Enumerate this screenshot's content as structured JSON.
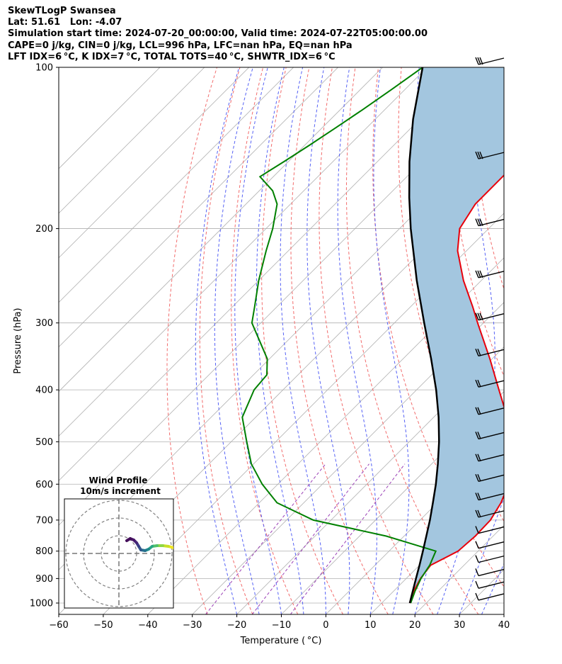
{
  "header": {
    "line1": "SkewTLogP Swansea",
    "line2": "Lat: 51.61   Lon: -4.07",
    "line3": "Simulation start time: 2024-07-20_00:00:00, Valid time: 2024-07-22T05:00:00.00",
    "line4": "CAPE=0 j/kg, CIN=0 j/kg, LCL=996 hPa, LFC=nan hPa, EQ=nan hPa",
    "line5": "LFT IDX=6 °C, K IDX=7 °C, TOTAL TOTS=40 °C, SHWTR_IDX=6 °C"
  },
  "colors": {
    "temperature": "#e8000b",
    "dewpoint": "#008000",
    "parcel": "#000000",
    "cape_fill": "#a3c6df",
    "dry_adiabat": "#f26c6c",
    "moist_adiabat": "#5662f5",
    "mixing_ratio": "#9a3fb6",
    "isotherm": "#b0b0b0"
  },
  "chart_data": {
    "type": "line",
    "xlabel": "Temperature ( °C)",
    "ylabel": "Pressure (hPa)",
    "xlim": [
      -60,
      40
    ],
    "ylim": [
      1050,
      100
    ],
    "y_scale": "log",
    "grid": true,
    "x_ticks": [
      "−60",
      "−50",
      "−40",
      "−30",
      "−20",
      "−10",
      "0",
      "10",
      "20",
      "30",
      "40"
    ],
    "y_ticks": [
      "100",
      "200",
      "300",
      "400",
      "500",
      "600",
      "700",
      "800",
      "900",
      "1000"
    ],
    "series": [
      {
        "role": "temperature",
        "pressure": [
          1000,
          950,
          900,
          850,
          800,
          750,
          700,
          650,
          600,
          550,
          500,
          450,
          400,
          350,
          300,
          280,
          250,
          220,
          200,
          180,
          160,
          150,
          140,
          130,
          120,
          110,
          100
        ],
        "temperature": [
          16.3,
          14.5,
          13.2,
          12.5,
          15.5,
          16,
          15.8,
          14.3,
          11.8,
          8.5,
          3.3,
          -3.5,
          -11.5,
          -20.5,
          -31.3,
          -36,
          -44,
          -52,
          -56.5,
          -58.5,
          -58.5,
          -58.5,
          -58,
          -58,
          -57,
          -56,
          -55
        ]
      },
      {
        "role": "dewpoint",
        "pressure": [
          1000,
          950,
          900,
          850,
          800,
          750,
          700,
          650,
          600,
          550,
          500,
          450,
          400,
          375,
          350,
          300,
          280,
          250,
          220,
          200,
          180,
          170,
          160,
          150,
          140,
          130,
          120,
          110,
          100
        ],
        "temperature": [
          16.5,
          14.8,
          13.3,
          12.3,
          10.5,
          -4,
          -24,
          -36,
          -43.5,
          -50.5,
          -56.5,
          -63,
          -66.5,
          -67,
          -70.5,
          -82,
          -85,
          -90,
          -95,
          -98.5,
          -103,
          -107,
          -113,
          -111,
          -109,
          -107,
          -105,
          -103,
          -101
        ]
      },
      {
        "role": "parcel",
        "pressure": [
          1000,
          950,
          900,
          850,
          800,
          750,
          700,
          650,
          600,
          550,
          500,
          450,
          400,
          350,
          300,
          250,
          200,
          175,
          150,
          125,
          100
        ],
        "temperature": [
          16.3,
          14.3,
          12.2,
          10,
          7.6,
          5,
          2.2,
          -1,
          -4.5,
          -8.6,
          -13.3,
          -18.9,
          -25.6,
          -33.7,
          -43.3,
          -54.5,
          -67.5,
          -74.8,
          -82.8,
          -91.5,
          -101
        ]
      }
    ],
    "wind_barbs_right": true,
    "inset": {
      "type": "hodograph",
      "title": "Wind Profile",
      "subtitle": "10m/s increment"
    }
  }
}
